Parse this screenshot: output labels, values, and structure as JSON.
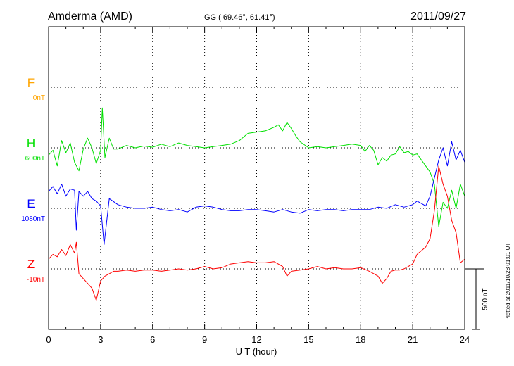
{
  "header": {
    "station": "Amderma (AMD)",
    "coords": "GG ( 69.46°,  61.41°)",
    "date": "2011/09/27"
  },
  "side_note": "Plotted at 2011/10/28 01:01  UT",
  "scale_label": "500 nT",
  "colors": {
    "F": "#ffa500",
    "H": "#00e000",
    "E": "#0000ff",
    "Z": "#ff0000",
    "grid": "#000000"
  },
  "chart_data": {
    "type": "line",
    "xlabel": "U T (hour)",
    "xlim": [
      0,
      24
    ],
    "x_ticks": [
      "0",
      "3",
      "6",
      "9",
      "12",
      "15",
      "18",
      "21",
      "24"
    ],
    "scale_nT": 500,
    "series": [
      {
        "name": "F",
        "offset_label": "0nT",
        "color": "#ffa500",
        "x": [],
        "values": []
      },
      {
        "name": "H",
        "offset_label": "600nT",
        "color": "#00e000",
        "x": [
          0,
          0.25,
          0.5,
          0.75,
          1,
          1.25,
          1.5,
          1.75,
          2,
          2.25,
          2.5,
          2.75,
          3,
          3.1,
          3.25,
          3.5,
          3.75,
          4,
          4.5,
          5,
          5.5,
          6,
          6.5,
          7,
          7.5,
          8,
          8.5,
          9,
          9.5,
          10,
          10.5,
          11,
          11.5,
          12,
          12.5,
          13,
          13.25,
          13.5,
          13.75,
          14,
          14.25,
          14.5,
          15,
          15.5,
          16,
          16.5,
          17,
          17.5,
          18,
          18.25,
          18.5,
          18.75,
          19,
          19.25,
          19.5,
          19.75,
          20,
          20.25,
          20.5,
          20.75,
          21,
          21.25,
          21.5,
          21.75,
          22,
          22.25,
          22.5,
          22.75,
          23,
          23.25,
          23.5,
          23.75,
          24
        ],
        "values": [
          -60,
          -20,
          -150,
          60,
          -40,
          40,
          -120,
          -190,
          -10,
          80,
          0,
          -130,
          -20,
          330,
          -80,
          80,
          -10,
          -10,
          20,
          0,
          15,
          5,
          30,
          10,
          40,
          20,
          10,
          0,
          10,
          20,
          30,
          60,
          120,
          130,
          140,
          170,
          190,
          140,
          210,
          160,
          100,
          50,
          0,
          10,
          0,
          10,
          20,
          30,
          20,
          -30,
          20,
          -20,
          -140,
          -80,
          -110,
          -60,
          -50,
          10,
          -40,
          -30,
          -60,
          -50,
          -100,
          -150,
          -200,
          -300,
          -650,
          -450,
          -500,
          -350,
          -500,
          -300,
          -400
        ]
      },
      {
        "name": "E",
        "offset_label": "1080nT",
        "color": "#0000ff",
        "x": [
          0,
          0.25,
          0.5,
          0.75,
          1,
          1.25,
          1.5,
          1.6,
          1.75,
          2,
          2.25,
          2.5,
          2.75,
          3,
          3.2,
          3.5,
          4,
          4.5,
          5,
          5.5,
          6,
          6.5,
          7,
          7.5,
          8,
          8.5,
          9,
          9.5,
          10,
          10.5,
          11,
          11.5,
          12,
          12.5,
          13,
          13.5,
          14,
          14.5,
          15,
          15.5,
          16,
          16.5,
          17,
          17.5,
          18,
          18.5,
          19,
          19.5,
          20,
          20.5,
          21,
          21.25,
          21.5,
          21.75,
          22,
          22.25,
          22.5,
          22.75,
          23,
          23.25,
          23.5,
          23.75,
          24
        ],
        "values": [
          140,
          180,
          120,
          200,
          100,
          160,
          150,
          -180,
          140,
          100,
          140,
          80,
          60,
          20,
          -300,
          80,
          30,
          10,
          0,
          0,
          10,
          -10,
          -20,
          -10,
          -30,
          10,
          20,
          10,
          -10,
          -20,
          -20,
          -10,
          -10,
          -20,
          -30,
          -10,
          -30,
          -40,
          -10,
          -20,
          -10,
          -10,
          -20,
          -10,
          -10,
          -10,
          10,
          0,
          30,
          10,
          30,
          60,
          40,
          20,
          100,
          250,
          400,
          500,
          350,
          550,
          400,
          480,
          380
        ]
      },
      {
        "name": "Z",
        "offset_label": "-10nT",
        "color": "#ff0000",
        "x": [
          0,
          0.25,
          0.5,
          0.75,
          1,
          1.25,
          1.5,
          1.6,
          1.75,
          2,
          2.25,
          2.5,
          2.75,
          3,
          3.25,
          3.5,
          3.75,
          4,
          4.5,
          5,
          5.5,
          6,
          6.5,
          7,
          7.5,
          8,
          8.5,
          9,
          9.5,
          10,
          10.5,
          11,
          11.5,
          12,
          12.5,
          13,
          13.5,
          13.75,
          14,
          14.5,
          15,
          15.5,
          16,
          16.5,
          17,
          17.5,
          18,
          18.5,
          19,
          19.25,
          19.5,
          19.75,
          20,
          20.25,
          20.5,
          21,
          21.25,
          21.5,
          21.75,
          22,
          22.25,
          22.5,
          22.75,
          23,
          23.25,
          23.5,
          23.75,
          24
        ],
        "values": [
          80,
          120,
          100,
          160,
          110,
          200,
          130,
          220,
          -40,
          -80,
          -120,
          -160,
          -260,
          -100,
          -60,
          -40,
          -20,
          -20,
          -10,
          -20,
          -10,
          -10,
          -20,
          -10,
          0,
          -10,
          0,
          20,
          0,
          10,
          40,
          50,
          60,
          50,
          50,
          60,
          20,
          -60,
          -20,
          -10,
          0,
          20,
          0,
          10,
          0,
          0,
          10,
          -20,
          -60,
          -120,
          -80,
          -20,
          -10,
          -10,
          0,
          40,
          120,
          150,
          180,
          250,
          480,
          850,
          700,
          600,
          400,
          300,
          50,
          80
        ]
      }
    ]
  }
}
